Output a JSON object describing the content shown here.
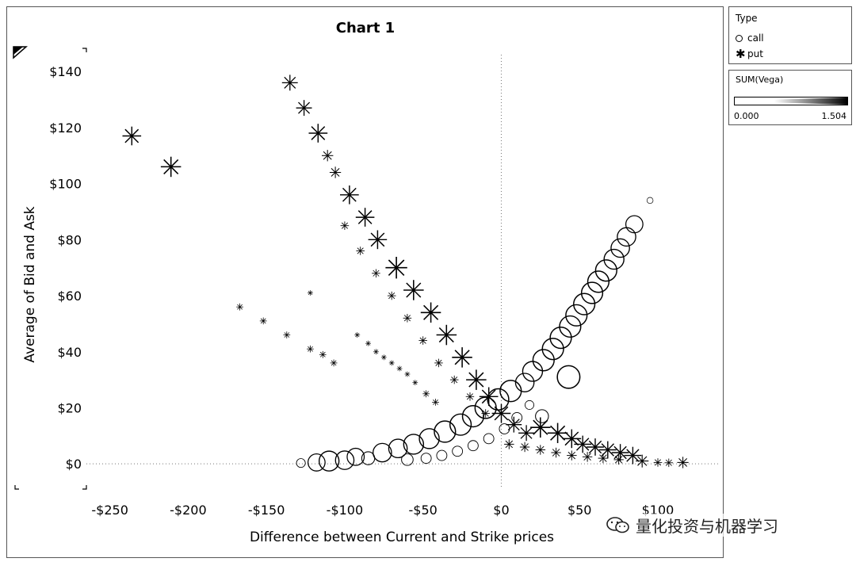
{
  "chart_data": {
    "type": "scatter",
    "title": "Chart 1",
    "xlabel": "Difference between Current and Strike prices",
    "ylabel": "Average of Bid and Ask",
    "xlim": [
      -265,
      140
    ],
    "ylim": [
      -9,
      146
    ],
    "x_ticks": [
      -250,
      -200,
      -150,
      -100,
      -50,
      0,
      50,
      100
    ],
    "x_tick_labels": [
      "-$250",
      "-$200",
      "-$150",
      "-$100",
      "-$50",
      "$0",
      "$50",
      "$100"
    ],
    "y_ticks": [
      0,
      20,
      40,
      60,
      80,
      100,
      120,
      140
    ],
    "y_tick_labels": [
      "$0",
      "$20",
      "$40",
      "$60",
      "$80",
      "$100",
      "$120",
      "$140"
    ],
    "series": [
      {
        "name": "call",
        "marker": "circle",
        "points": [
          {
            "x": -128,
            "y": 0.3,
            "vega": 0.3
          },
          {
            "x": -118,
            "y": 0.5,
            "vega": 0.9
          },
          {
            "x": -110,
            "y": 1.0,
            "vega": 1.1
          },
          {
            "x": -100,
            "y": 1.3,
            "vega": 1.0
          },
          {
            "x": -93,
            "y": 2.5,
            "vega": 0.9
          },
          {
            "x": -85,
            "y": 2.0,
            "vega": 0.6
          },
          {
            "x": -76,
            "y": 4.0,
            "vega": 1.0
          },
          {
            "x": -66,
            "y": 5.5,
            "vega": 1.0
          },
          {
            "x": -56,
            "y": 7.0,
            "vega": 1.1
          },
          {
            "x": -46,
            "y": 9.0,
            "vega": 1.1
          },
          {
            "x": -36,
            "y": 11.5,
            "vega": 1.2
          },
          {
            "x": -26,
            "y": 14.0,
            "vega": 1.2
          },
          {
            "x": -18,
            "y": 17.0,
            "vega": 1.2
          },
          {
            "x": -10,
            "y": 20.0,
            "vega": 1.2
          },
          {
            "x": -2,
            "y": 23.0,
            "vega": 1.2
          },
          {
            "x": 6,
            "y": 26.0,
            "vega": 1.2
          },
          {
            "x": 15,
            "y": 29.0,
            "vega": 1.0
          },
          {
            "x": 20,
            "y": 33.0,
            "vega": 1.1
          },
          {
            "x": 27,
            "y": 37.0,
            "vega": 1.2
          },
          {
            "x": 33,
            "y": 41.0,
            "vega": 1.2
          },
          {
            "x": 38,
            "y": 45.0,
            "vega": 1.2
          },
          {
            "x": 44,
            "y": 49.0,
            "vega": 1.2
          },
          {
            "x": 48,
            "y": 53.0,
            "vega": 1.2
          },
          {
            "x": 53,
            "y": 57.0,
            "vega": 1.2
          },
          {
            "x": 58,
            "y": 61.0,
            "vega": 1.2
          },
          {
            "x": 62,
            "y": 65.0,
            "vega": 1.2
          },
          {
            "x": 67,
            "y": 69.0,
            "vega": 1.2
          },
          {
            "x": 72,
            "y": 73.0,
            "vega": 1.1
          },
          {
            "x": 76,
            "y": 77.0,
            "vega": 1.0
          },
          {
            "x": 80,
            "y": 81.0,
            "vega": 1.0
          },
          {
            "x": 85,
            "y": 85.5,
            "vega": 0.9
          },
          {
            "x": 43,
            "y": 31.0,
            "vega": 1.3
          },
          {
            "x": 26,
            "y": 17.0,
            "vega": 0.6
          },
          {
            "x": 95,
            "y": 94.0,
            "vega": 0.1
          },
          {
            "x": -60,
            "y": 1.5,
            "vega": 0.5
          },
          {
            "x": -48,
            "y": 2.0,
            "vega": 0.4
          },
          {
            "x": -38,
            "y": 3.0,
            "vega": 0.4
          },
          {
            "x": -28,
            "y": 4.5,
            "vega": 0.4
          },
          {
            "x": -18,
            "y": 6.5,
            "vega": 0.4
          },
          {
            "x": -8,
            "y": 9.0,
            "vega": 0.4
          },
          {
            "x": 2,
            "y": 12.5,
            "vega": 0.4
          },
          {
            "x": 10,
            "y": 16.5,
            "vega": 0.4
          },
          {
            "x": 18,
            "y": 21.0,
            "vega": 0.3
          }
        ]
      },
      {
        "name": "put",
        "marker": "asterisk",
        "points": [
          {
            "x": -236,
            "y": 117,
            "vega": 1.0
          },
          {
            "x": -211,
            "y": 106,
            "vega": 1.1
          },
          {
            "x": -135,
            "y": 136,
            "vega": 0.8
          },
          {
            "x": -126,
            "y": 127,
            "vega": 0.8
          },
          {
            "x": -117,
            "y": 118,
            "vega": 1.0
          },
          {
            "x": -111,
            "y": 110,
            "vega": 0.5
          },
          {
            "x": -106,
            "y": 104,
            "vega": 0.5
          },
          {
            "x": -97,
            "y": 96,
            "vega": 1.0
          },
          {
            "x": -87,
            "y": 88,
            "vega": 1.0
          },
          {
            "x": -79,
            "y": 80,
            "vega": 1.0
          },
          {
            "x": -67,
            "y": 70,
            "vega": 1.2
          },
          {
            "x": -56,
            "y": 62,
            "vega": 1.1
          },
          {
            "x": -45,
            "y": 54,
            "vega": 1.1
          },
          {
            "x": -35,
            "y": 46,
            "vega": 1.1
          },
          {
            "x": -25,
            "y": 38,
            "vega": 1.1
          },
          {
            "x": -16,
            "y": 30,
            "vega": 1.1
          },
          {
            "x": -8,
            "y": 24,
            "vega": 1.0
          },
          {
            "x": 0,
            "y": 18,
            "vega": 1.0
          },
          {
            "x": 8,
            "y": 14,
            "vega": 0.8
          },
          {
            "x": 16,
            "y": 11,
            "vega": 0.8
          },
          {
            "x": 25,
            "y": 13,
            "vega": 1.1
          },
          {
            "x": 36,
            "y": 11,
            "vega": 1.1
          },
          {
            "x": 45,
            "y": 9,
            "vega": 1.0
          },
          {
            "x": 52,
            "y": 7,
            "vega": 0.9
          },
          {
            "x": 60,
            "y": 6,
            "vega": 0.9
          },
          {
            "x": 68,
            "y": 5,
            "vega": 0.9
          },
          {
            "x": 76,
            "y": 4,
            "vega": 0.9
          },
          {
            "x": 84,
            "y": 3,
            "vega": 0.9
          },
          {
            "x": 90,
            "y": 1,
            "vega": 0.6
          },
          {
            "x": 100,
            "y": 0.5,
            "vega": 0.3
          },
          {
            "x": 107,
            "y": 0.4,
            "vega": 0.3
          },
          {
            "x": 116,
            "y": 0.5,
            "vega": 0.5
          },
          {
            "x": -167,
            "y": 56,
            "vega": 0.2
          },
          {
            "x": -152,
            "y": 51,
            "vega": 0.2
          },
          {
            "x": -137,
            "y": 46,
            "vega": 0.2
          },
          {
            "x": -122,
            "y": 41,
            "vega": 0.2
          },
          {
            "x": -114,
            "y": 39,
            "vega": 0.2
          },
          {
            "x": -107,
            "y": 36,
            "vega": 0.2
          },
          {
            "x": -122,
            "y": 61,
            "vega": 0.1
          },
          {
            "x": -92,
            "y": 46,
            "vega": 0.1
          },
          {
            "x": -85,
            "y": 43,
            "vega": 0.1
          },
          {
            "x": -80,
            "y": 40,
            "vega": 0.1
          },
          {
            "x": -75,
            "y": 38,
            "vega": 0.1
          },
          {
            "x": -70,
            "y": 36,
            "vega": 0.1
          },
          {
            "x": -65,
            "y": 34,
            "vega": 0.1
          },
          {
            "x": -60,
            "y": 32,
            "vega": 0.1
          },
          {
            "x": -55,
            "y": 29,
            "vega": 0.1
          },
          {
            "x": -48,
            "y": 25,
            "vega": 0.2
          },
          {
            "x": -42,
            "y": 22,
            "vega": 0.2
          },
          {
            "x": -100,
            "y": 85,
            "vega": 0.3
          },
          {
            "x": -90,
            "y": 76,
            "vega": 0.3
          },
          {
            "x": -80,
            "y": 68,
            "vega": 0.3
          },
          {
            "x": -70,
            "y": 60,
            "vega": 0.3
          },
          {
            "x": -60,
            "y": 52,
            "vega": 0.3
          },
          {
            "x": -50,
            "y": 44,
            "vega": 0.3
          },
          {
            "x": -40,
            "y": 36,
            "vega": 0.3
          },
          {
            "x": -30,
            "y": 30,
            "vega": 0.3
          },
          {
            "x": -20,
            "y": 24,
            "vega": 0.3
          },
          {
            "x": -10,
            "y": 18,
            "vega": 0.3
          },
          {
            "x": 5,
            "y": 7,
            "vega": 0.4
          },
          {
            "x": 15,
            "y": 6,
            "vega": 0.4
          },
          {
            "x": 25,
            "y": 5,
            "vega": 0.4
          },
          {
            "x": 35,
            "y": 4,
            "vega": 0.4
          },
          {
            "x": 45,
            "y": 3,
            "vega": 0.4
          },
          {
            "x": 55,
            "y": 2.5,
            "vega": 0.4
          },
          {
            "x": 65,
            "y": 2,
            "vega": 0.4
          },
          {
            "x": 75,
            "y": 1.5,
            "vega": 0.4
          }
        ]
      }
    ],
    "size_encoding": {
      "field": "SUM(Vega)",
      "min": 0.0,
      "max": 1.504
    },
    "reference_lines": [
      {
        "axis": "x",
        "value": 0,
        "style": "dotted"
      },
      {
        "axis": "y",
        "value": 0,
        "style": "dotted"
      }
    ]
  },
  "legend": {
    "type_title": "Type",
    "type_items": [
      {
        "label": "call",
        "icon": "circle-icon"
      },
      {
        "label": "put",
        "icon": "asterisk-icon"
      }
    ],
    "size_title": "SUM(Vega)",
    "size_min_label": "0.000",
    "size_max_label": "1.504"
  },
  "watermark": {
    "text": "量化投资与机器学习",
    "icon": "wechat-icon"
  }
}
